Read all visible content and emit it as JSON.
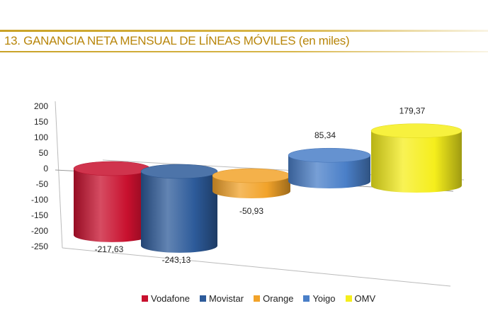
{
  "page": {
    "title": "13. GANANCIA NETA MENSUAL DE LÍNEAS MÓVILES (en miles)"
  },
  "chart_data": {
    "type": "bar",
    "style": "3d-cylinder",
    "categories": [
      "Vodafone",
      "Movistar",
      "Orange",
      "Yoigo",
      "OMV"
    ],
    "values": [
      -217.63,
      -243.13,
      -50.93,
      85.34,
      179.37
    ],
    "value_labels": [
      "-217,63",
      "-243,13",
      "-50,93",
      "85,34",
      "179,37"
    ],
    "colors": [
      "#c8102e",
      "#2d5b9a",
      "#f2a32a",
      "#4a7fc8",
      "#f5ee1c"
    ],
    "ylim": [
      -250,
      200
    ],
    "yticks": [
      "200",
      "150",
      "100",
      "50",
      "0",
      "-50",
      "-100",
      "-150",
      "-200",
      "-250"
    ],
    "legend_position": "bottom",
    "grid": false
  }
}
